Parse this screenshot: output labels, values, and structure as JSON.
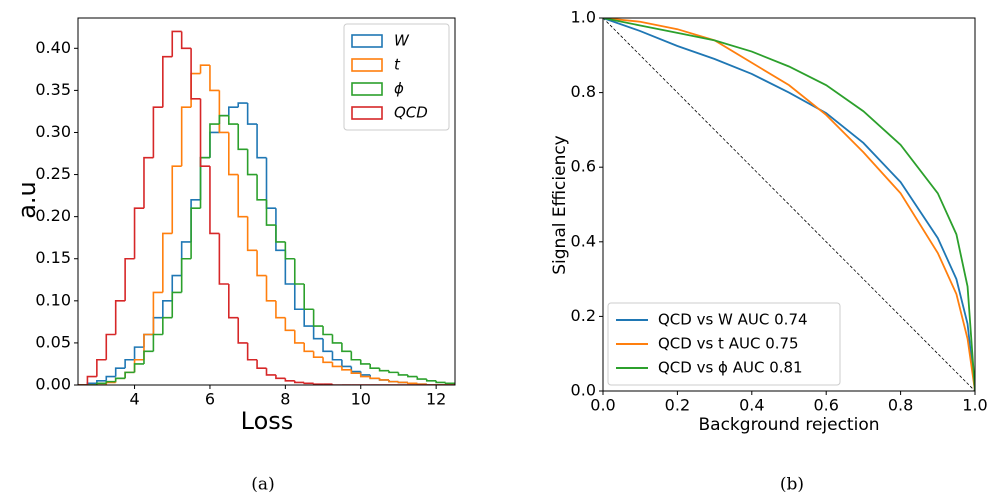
{
  "chart_data": [
    {
      "type": "histogram",
      "caption": "(a)",
      "xlabel": "Loss",
      "ylabel": "a.u",
      "bins": [
        2.5,
        2.75,
        3,
        3.25,
        3.5,
        3.75,
        4,
        4.25,
        4.5,
        4.75,
        5,
        5.25,
        5.5,
        5.75,
        6,
        6.25,
        6.5,
        6.75,
        7,
        7.25,
        7.5,
        7.75,
        8,
        8.25,
        8.5,
        8.75,
        9,
        9.25,
        9.5,
        9.75,
        10,
        10.25,
        10.5,
        10.75,
        11,
        11.25,
        11.5,
        11.75,
        12,
        12.25,
        12.5
      ],
      "series": [
        {
          "name": "W",
          "color": "#1f77b4",
          "values": [
            0,
            0.002,
            0.005,
            0.01,
            0.02,
            0.03,
            0.045,
            0.06,
            0.08,
            0.1,
            0.13,
            0.17,
            0.22,
            0.27,
            0.3,
            0.32,
            0.33,
            0.335,
            0.31,
            0.27,
            0.21,
            0.16,
            0.12,
            0.09,
            0.07,
            0.055,
            0.04,
            0.03,
            0.022,
            0.016,
            0.012,
            0.008,
            0.006,
            0.004,
            0.003,
            0.002,
            0.001,
            0,
            0,
            0
          ]
        },
        {
          "name": "t",
          "color": "#ff7f0e",
          "values": [
            0,
            0,
            0,
            0.003,
            0.008,
            0.015,
            0.03,
            0.06,
            0.11,
            0.18,
            0.26,
            0.33,
            0.37,
            0.38,
            0.35,
            0.3,
            0.25,
            0.2,
            0.16,
            0.13,
            0.1,
            0.08,
            0.065,
            0.05,
            0.04,
            0.033,
            0.027,
            0.022,
            0.018,
            0.014,
            0.01,
            0.008,
            0.006,
            0.004,
            0.003,
            0.002,
            0.001,
            0,
            0,
            0
          ]
        },
        {
          "name": "ϕ",
          "color": "#2ca02c",
          "values": [
            0,
            0,
            0.002,
            0.004,
            0.008,
            0.015,
            0.025,
            0.04,
            0.06,
            0.08,
            0.11,
            0.15,
            0.21,
            0.27,
            0.31,
            0.32,
            0.31,
            0.28,
            0.25,
            0.22,
            0.19,
            0.17,
            0.15,
            0.12,
            0.09,
            0.07,
            0.06,
            0.05,
            0.04,
            0.03,
            0.025,
            0.02,
            0.017,
            0.015,
            0.012,
            0.01,
            0.007,
            0.005,
            0.003,
            0.002
          ]
        },
        {
          "name": "QCD",
          "color": "#d62728",
          "values": [
            0,
            0.01,
            0.03,
            0.06,
            0.1,
            0.15,
            0.21,
            0.27,
            0.33,
            0.39,
            0.42,
            0.4,
            0.34,
            0.26,
            0.18,
            0.12,
            0.08,
            0.05,
            0.03,
            0.02,
            0.012,
            0.008,
            0.005,
            0.003,
            0.002,
            0.001,
            0.001,
            0,
            0,
            0,
            0,
            0,
            0,
            0,
            0,
            0,
            0,
            0,
            0,
            0
          ]
        }
      ],
      "xlim": [
        2.5,
        12.5
      ],
      "xticks": [
        4,
        6,
        8,
        10,
        12
      ],
      "ylim": [
        0,
        0.436
      ],
      "yticks": [
        {
          "value": 0,
          "label": "0.00"
        },
        {
          "value": 0.05,
          "label": "0.05"
        },
        {
          "value": 0.1,
          "label": "0.10"
        },
        {
          "value": 0.15,
          "label": "0.15"
        },
        {
          "value": 0.2,
          "label": "0.20"
        },
        {
          "value": 0.25,
          "label": "0.25"
        },
        {
          "value": 0.3,
          "label": "0.30"
        },
        {
          "value": 0.35,
          "label": "0.35"
        },
        {
          "value": 0.4,
          "label": "0.40"
        }
      ],
      "legend": "upper right"
    },
    {
      "type": "line",
      "caption": "(b)",
      "xlabel": "Background rejection",
      "ylabel": "Signal Efficiency",
      "x": [
        0,
        0.1,
        0.2,
        0.3,
        0.4,
        0.5,
        0.6,
        0.7,
        0.8,
        0.9,
        0.95,
        0.98,
        1.0
      ],
      "series": [
        {
          "name": "QCD vs W AUC 0.74",
          "color": "#1f77b4",
          "values": [
            1.0,
            0.965,
            0.925,
            0.89,
            0.85,
            0.8,
            0.745,
            0.665,
            0.56,
            0.41,
            0.3,
            0.18,
            0.0
          ]
        },
        {
          "name": "QCD vs t AUC 0.75",
          "color": "#ff7f0e",
          "values": [
            1.0,
            0.99,
            0.97,
            0.94,
            0.88,
            0.82,
            0.74,
            0.64,
            0.53,
            0.37,
            0.26,
            0.14,
            0.0
          ]
        },
        {
          "name": "QCD vs ϕ AUC 0.81",
          "color": "#2ca02c",
          "values": [
            1.0,
            0.98,
            0.96,
            0.94,
            0.91,
            0.87,
            0.82,
            0.75,
            0.66,
            0.53,
            0.42,
            0.28,
            0.0
          ]
        }
      ],
      "xlim": [
        0,
        1
      ],
      "xticks": [
        {
          "value": 0,
          "label": "0.0"
        },
        {
          "value": 0.2,
          "label": "0.2"
        },
        {
          "value": 0.4,
          "label": "0.4"
        },
        {
          "value": 0.6,
          "label": "0.6"
        },
        {
          "value": 0.8,
          "label": "0.8"
        },
        {
          "value": 1,
          "label": "1.0"
        }
      ],
      "ylim": [
        0,
        1
      ],
      "yticks": [
        {
          "value": 0,
          "label": "0.0"
        },
        {
          "value": 0.2,
          "label": "0.2"
        },
        {
          "value": 0.4,
          "label": "0.4"
        },
        {
          "value": 0.6,
          "label": "0.6"
        },
        {
          "value": 0.8,
          "label": "0.8"
        },
        {
          "value": 1,
          "label": "1.0"
        }
      ],
      "diagonal": true,
      "legend": "lower left"
    }
  ]
}
